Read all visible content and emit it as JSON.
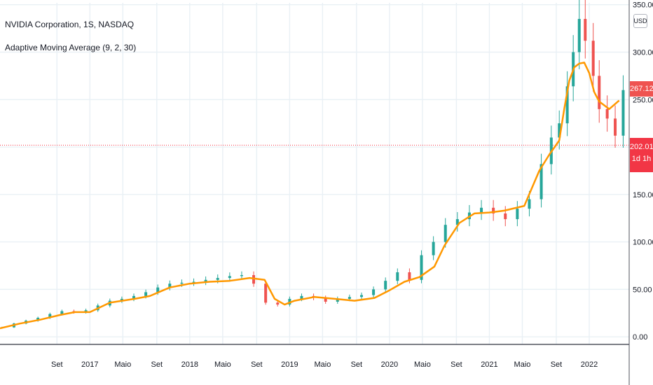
{
  "header": {
    "symbol_line": "NVIDIA Corporation, 1S, NASDAQ",
    "indicator_line": "Adaptive Moving Average (9, 2, 30)"
  },
  "scale": {
    "currency": "USD",
    "last_price": "267.12",
    "line_price": "202.01",
    "countdown": "1d 1h"
  },
  "colors": {
    "up": "#26a69a",
    "down": "#ef5350",
    "ama": "#ff9800",
    "grid": "#e9f0f5",
    "price_line": "#f23645"
  },
  "chart_data": {
    "type": "line",
    "x_labels": [
      "Set",
      "2017",
      "Maio",
      "Set",
      "2018",
      "Maio",
      "Set",
      "2019",
      "Maio",
      "Set",
      "2020",
      "Maio",
      "Set",
      "2021",
      "Maio",
      "Set",
      "2022"
    ],
    "x_label_positions": [
      2016.67,
      2017.0,
      2017.33,
      2017.67,
      2018.0,
      2018.33,
      2018.67,
      2019.0,
      2019.33,
      2019.67,
      2020.0,
      2020.33,
      2020.67,
      2021.0,
      2021.33,
      2021.67,
      2022.0
    ],
    "xlim": [
      2016.1,
      2022.4
    ],
    "y_ticks": [
      "0.00",
      "50.00",
      "100.00",
      "150.00",
      "200.00",
      "250.00",
      "300.00",
      "350.00"
    ],
    "y_tick_values": [
      0,
      50,
      100,
      150,
      200,
      250,
      300,
      350
    ],
    "ylim": [
      -8,
      352
    ],
    "horizontal_line": 202.01,
    "series": [
      {
        "name": "Adaptive Moving Average (9, 2, 30)",
        "x": [
          2016.1,
          2016.3,
          2016.5,
          2016.7,
          2016.85,
          2017.0,
          2017.2,
          2017.45,
          2017.6,
          2017.8,
          2018.0,
          2018.2,
          2018.4,
          2018.6,
          2018.75,
          2018.85,
          2018.95,
          2019.05,
          2019.25,
          2019.45,
          2019.65,
          2019.85,
          2020.0,
          2020.15,
          2020.3,
          2020.45,
          2020.55,
          2020.7,
          2020.85,
          2021.0,
          2021.15,
          2021.35,
          2021.5,
          2021.6,
          2021.7,
          2021.75,
          2021.8,
          2021.85,
          2021.9,
          2021.95,
          2022.0,
          2022.05,
          2022.1,
          2022.2,
          2022.3
        ],
        "y": [
          9,
          14,
          18,
          23,
          26,
          26,
          36,
          40,
          43,
          52,
          56,
          58,
          59,
          62,
          60,
          40,
          34,
          38,
          42,
          40,
          38,
          41,
          49,
          58,
          63,
          74,
          96,
          120,
          130,
          131,
          133,
          138,
          175,
          192,
          207,
          240,
          270,
          284,
          288,
          289,
          278,
          258,
          248,
          240,
          249
        ]
      }
    ],
    "candles": {
      "x": [
        2016.12,
        2016.24,
        2016.36,
        2016.48,
        2016.6,
        2016.72,
        2016.84,
        2016.96,
        2017.08,
        2017.2,
        2017.32,
        2017.44,
        2017.56,
        2017.68,
        2017.8,
        2017.92,
        2018.04,
        2018.16,
        2018.28,
        2018.4,
        2018.52,
        2018.64,
        2018.76,
        2018.88,
        2019.0,
        2019.12,
        2019.24,
        2019.36,
        2019.48,
        2019.6,
        2019.72,
        2019.84,
        2019.96,
        2020.08,
        2020.2,
        2020.32,
        2020.44,
        2020.56,
        2020.68,
        2020.8,
        2020.92,
        2021.04,
        2021.16,
        2021.28,
        2021.4,
        2021.52,
        2021.62,
        2021.7,
        2021.78,
        2021.84,
        2021.9,
        2021.96,
        2022.04,
        2022.1,
        2022.18,
        2022.26,
        2022.34
      ],
      "close": [
        10,
        14,
        17,
        20,
        24,
        27,
        26,
        28,
        33,
        38,
        40,
        43,
        47,
        52,
        56,
        57,
        58,
        60,
        62,
        64,
        65,
        56,
        36,
        34,
        40,
        43,
        41,
        37,
        40,
        42,
        44,
        50,
        59,
        68,
        60,
        86,
        100,
        118,
        124,
        131,
        136,
        130,
        124,
        135,
        145,
        182,
        210,
        225,
        264,
        300,
        335,
        312,
        275,
        240,
        230,
        212,
        260
      ]
    }
  }
}
